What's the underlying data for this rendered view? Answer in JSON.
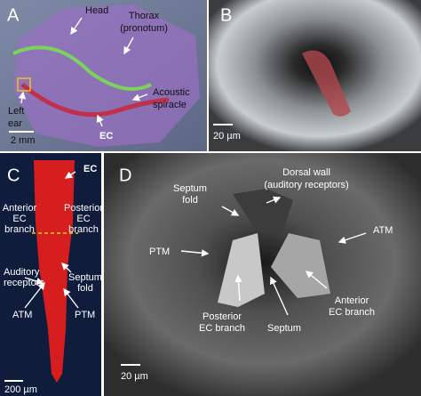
{
  "panels": [
    {
      "letter": "A",
      "scale_bar": "2 mm",
      "labels": [
        {
          "lines": [
            "Head"
          ]
        },
        {
          "lines": [
            "Thorax",
            "(pronotum)"
          ]
        },
        {
          "lines": [
            "Acoustic",
            "spiracle"
          ]
        },
        {
          "lines": [
            "Left",
            "ear"
          ]
        },
        {
          "lines": [
            "EC"
          ]
        }
      ]
    },
    {
      "letter": "B",
      "scale_bar": "20 µm",
      "labels": []
    },
    {
      "letter": "C",
      "scale_bar": "200 µm",
      "labels": [
        {
          "lines": [
            "EC"
          ]
        },
        {
          "lines": [
            "Anterior",
            "EC",
            "branch"
          ]
        },
        {
          "lines": [
            "Posterior",
            "EC",
            "branch"
          ]
        },
        {
          "lines": [
            "Auditory",
            "receptors"
          ]
        },
        {
          "lines": [
            "Septum",
            "fold"
          ]
        },
        {
          "lines": [
            "ATM"
          ]
        },
        {
          "lines": [
            "PTM"
          ]
        }
      ]
    },
    {
      "letter": "D",
      "scale_bar": "20 µm",
      "labels": [
        {
          "lines": [
            "Dorsal wall",
            "(auditory receptors)"
          ]
        },
        {
          "lines": [
            "Septum",
            "fold"
          ]
        },
        {
          "lines": [
            "ATM"
          ]
        },
        {
          "lines": [
            "PTM"
          ]
        },
        {
          "lines": [
            "Posterior",
            "EC branch"
          ]
        },
        {
          "lines": [
            "Septum"
          ]
        },
        {
          "lines": [
            "Anterior",
            "EC branch"
          ]
        }
      ]
    }
  ]
}
